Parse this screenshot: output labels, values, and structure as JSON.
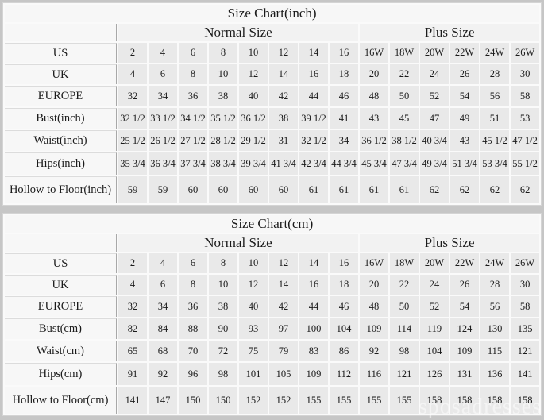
{
  "page": {
    "background": "#c6c6c6",
    "watermark": "sposadresses"
  },
  "colors": {
    "page_background": "#c6c6c6",
    "table_background": "#fafafa",
    "label_cell": "#f7f7f7",
    "data_cell": "#e9e9e9",
    "text": "#1b1b1b"
  },
  "chart_data": [
    {
      "type": "table",
      "title": "Size Chart(inch)",
      "column_groups": [
        {
          "label": "Normal Size",
          "span": 8
        },
        {
          "label": "Plus Size",
          "span": 6
        }
      ],
      "columns": [
        "2",
        "4",
        "6",
        "8",
        "10",
        "12",
        "14",
        "16",
        "16W",
        "18W",
        "20W",
        "22W",
        "24W",
        "26W"
      ],
      "rows": [
        {
          "label": "US",
          "values": [
            "2",
            "4",
            "6",
            "8",
            "10",
            "12",
            "14",
            "16",
            "16W",
            "18W",
            "20W",
            "22W",
            "24W",
            "26W"
          ]
        },
        {
          "label": "UK",
          "values": [
            "4",
            "6",
            "8",
            "10",
            "12",
            "14",
            "16",
            "18",
            "20",
            "22",
            "24",
            "26",
            "28",
            "30"
          ]
        },
        {
          "label": "EUROPE",
          "values": [
            "32",
            "34",
            "36",
            "38",
            "40",
            "42",
            "44",
            "46",
            "48",
            "50",
            "52",
            "54",
            "56",
            "58"
          ]
        },
        {
          "label": "Bust(inch)",
          "values": [
            "32 1/2",
            "33 1/2",
            "34 1/2",
            "35 1/2",
            "36 1/2",
            "38",
            "39 1/2",
            "41",
            "43",
            "45",
            "47",
            "49",
            "51",
            "53"
          ]
        },
        {
          "label": "Waist(inch)",
          "values": [
            "25 1/2",
            "26 1/2",
            "27 1/2",
            "28 1/2",
            "29 1/2",
            "31",
            "32 1/2",
            "34",
            "36 1/2",
            "38 1/2",
            "40 3/4",
            "43",
            "45 1/2",
            "47 1/2"
          ]
        },
        {
          "label": "Hips(inch)",
          "values": [
            "35 3/4",
            "36 3/4",
            "37 3/4",
            "38 3/4",
            "39 3/4",
            "41 3/4",
            "42 3/4",
            "44 3/4",
            "45 3/4",
            "47 3/4",
            "49 3/4",
            "51 3/4",
            "53 3/4",
            "55 1/2"
          ]
        },
        {
          "label": "Hollow to Floor(inch)",
          "values": [
            "59",
            "59",
            "60",
            "60",
            "60",
            "60",
            "61",
            "61",
            "61",
            "61",
            "62",
            "62",
            "62",
            "62"
          ]
        }
      ]
    },
    {
      "type": "table",
      "title": "Size Chart(cm)",
      "column_groups": [
        {
          "label": "Normal Size",
          "span": 8
        },
        {
          "label": "Plus Size",
          "span": 6
        }
      ],
      "columns": [
        "2",
        "4",
        "6",
        "8",
        "10",
        "12",
        "14",
        "16",
        "16W",
        "18W",
        "20W",
        "22W",
        "24W",
        "26W"
      ],
      "rows": [
        {
          "label": "US",
          "values": [
            "2",
            "4",
            "6",
            "8",
            "10",
            "12",
            "14",
            "16",
            "16W",
            "18W",
            "20W",
            "22W",
            "24W",
            "26W"
          ]
        },
        {
          "label": "UK",
          "values": [
            "4",
            "6",
            "8",
            "10",
            "12",
            "14",
            "16",
            "18",
            "20",
            "22",
            "24",
            "26",
            "28",
            "30"
          ]
        },
        {
          "label": "EUROPE",
          "values": [
            "32",
            "34",
            "36",
            "38",
            "40",
            "42",
            "44",
            "46",
            "48",
            "50",
            "52",
            "54",
            "56",
            "58"
          ]
        },
        {
          "label": "Bust(cm)",
          "values": [
            "82",
            "84",
            "88",
            "90",
            "93",
            "97",
            "100",
            "104",
            "109",
            "114",
            "119",
            "124",
            "130",
            "135"
          ]
        },
        {
          "label": "Waist(cm)",
          "values": [
            "65",
            "68",
            "70",
            "72",
            "75",
            "79",
            "83",
            "86",
            "92",
            "98",
            "104",
            "109",
            "115",
            "121"
          ]
        },
        {
          "label": "Hips(cm)",
          "values": [
            "91",
            "92",
            "96",
            "98",
            "101",
            "105",
            "109",
            "112",
            "116",
            "121",
            "126",
            "131",
            "136",
            "141"
          ]
        },
        {
          "label": "Hollow to Floor(cm)",
          "values": [
            "141",
            "147",
            "150",
            "150",
            "152",
            "152",
            "155",
            "155",
            "155",
            "155",
            "158",
            "158",
            "158",
            "158"
          ]
        }
      ]
    }
  ]
}
